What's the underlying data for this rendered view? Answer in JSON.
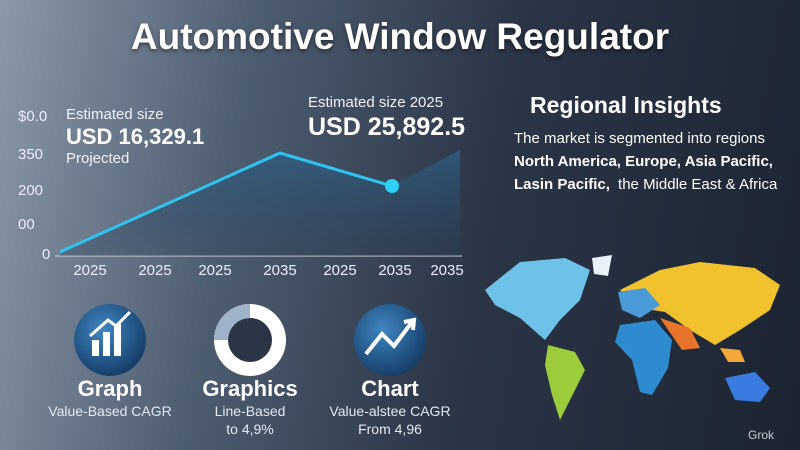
{
  "title": "Automotive Window Regulator",
  "chart_panel": {
    "y_labels": [
      "$0.0",
      "350",
      "200",
      "00",
      "0"
    ],
    "x_labels": [
      "2025",
      "2025",
      "2025",
      "2035",
      "2025",
      "2035",
      "2035"
    ],
    "callout_left": {
      "label": "Estimated size",
      "value": "USD 16,329.1",
      "note": "Projected"
    },
    "callout_right": {
      "label": "Estimated size 2025",
      "value": "USD 25,892.5"
    }
  },
  "regional": {
    "heading": "Regional Insights",
    "intro": "The market is segmented into regions",
    "line2": "North America, Europe, Asia Pacific,",
    "line3_bold": "Lasin Pacific,",
    "line3_rest": "the Middle East & Africa"
  },
  "icons": [
    {
      "title": "Graph",
      "lines": [
        "Value-Based CAGR"
      ]
    },
    {
      "title": "Graphics",
      "lines": [
        "Line-Based",
        "to 4,9%"
      ]
    },
    {
      "title": "Chart",
      "lines": [
        "Value-alstee CAGR",
        "From 4,96"
      ]
    }
  ],
  "watermark": "Grok"
}
